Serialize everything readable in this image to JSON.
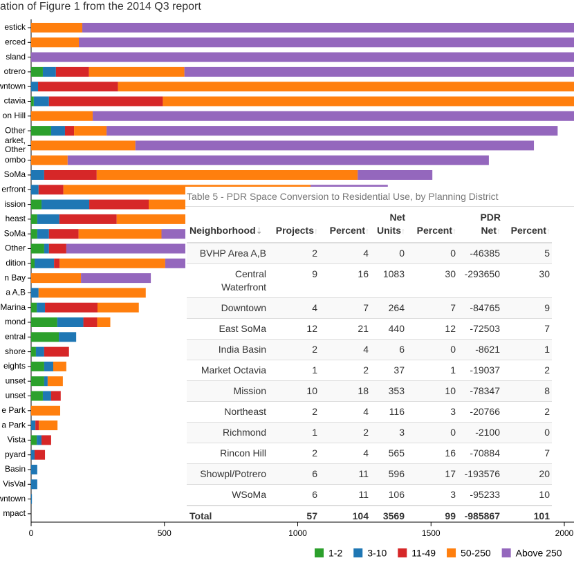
{
  "chart_data": {
    "type": "stacked-barh",
    "title": "ation of Figure 1 from the 2014 Q3 report",
    "categories": [
      "estick",
      "erced",
      "sland",
      "otrero",
      "wntown",
      "ctavia",
      "on Hill",
      "Other",
      "arket,\nOther",
      "ombo",
      "SoMa",
      "erfront",
      "ission",
      "heast",
      "SoMa",
      "Other",
      "dition",
      "n Bay",
      "a A,B",
      "Marina",
      "mond",
      "entral",
      "shore",
      "eights",
      "unset",
      "unset",
      "e Park",
      "a Park",
      "Vista",
      "pyard",
      "Basin",
      "VisVal",
      "owntown",
      "mpact"
    ],
    "series": [
      {
        "name": "1-2",
        "color": "#2ca02c",
        "values": [
          0,
          0,
          0,
          44,
          0,
          10,
          0,
          75,
          0,
          0,
          0,
          0,
          39,
          23,
          23,
          49,
          13,
          0,
          0,
          21,
          98,
          104,
          18,
          49,
          49,
          44,
          0,
          0,
          21,
          0,
          0,
          0,
          0,
          0
        ]
      },
      {
        "name": "3-10",
        "color": "#1f77b4",
        "values": [
          0,
          0,
          0,
          49,
          26,
          57,
          0,
          52,
          0,
          0,
          49,
          28,
          179,
          83,
          44,
          18,
          73,
          0,
          28,
          31,
          98,
          65,
          31,
          34,
          13,
          31,
          0,
          16,
          18,
          13,
          23,
          23,
          3,
          0
        ]
      },
      {
        "name": "11-49",
        "color": "#d62728",
        "values": [
          0,
          0,
          0,
          124,
          300,
          427,
          0,
          34,
          0,
          0,
          197,
          93,
          223,
          215,
          111,
          65,
          21,
          0,
          0,
          197,
          52,
          0,
          93,
          0,
          0,
          36,
          0,
          13,
          36,
          39,
          0,
          0,
          0,
          0
        ]
      },
      {
        "name": "50-250",
        "color": "#ff7f0e",
        "values": [
          192,
          179,
          0,
          358,
          1800,
          1600,
          231,
          122,
          391,
          137,
          979,
          927,
          400,
          400,
          311,
          0,
          396,
          187,
          402,
          155,
          49,
          0,
          0,
          49,
          57,
          0,
          109,
          70,
          0,
          0,
          0,
          0,
          0,
          0
        ]
      },
      {
        "name": "Above 250",
        "color": "#9467bd",
        "values": [
          1900,
          1900,
          2100,
          1500,
          0,
          0,
          1900,
          1692,
          1495,
          1580,
          280,
          290,
          300,
          0,
          100,
          500,
          100,
          262,
          0,
          0,
          0,
          0,
          0,
          0,
          0,
          0,
          0,
          0,
          0,
          0,
          0,
          0,
          0,
          0
        ]
      }
    ],
    "xlim": [
      0,
      2036
    ],
    "xticks": [
      0,
      500,
      1000,
      1500,
      2000
    ],
    "legend": "bottom-right"
  },
  "table": {
    "title": "Table 5 - PDR Space Conversion to Residential Use, by Planning District",
    "columns": [
      "Neighborhood",
      "Projects",
      "Percent",
      "Net Units",
      "Percent",
      "PDR Net",
      "Percent"
    ],
    "rows": [
      [
        "BVHP Area A,B",
        2,
        4,
        0,
        0,
        -46385,
        5
      ],
      [
        "Central Waterfront",
        9,
        16,
        1083,
        30,
        -293650,
        30
      ],
      [
        "Downtown",
        4,
        7,
        264,
        7,
        -84765,
        9
      ],
      [
        "East SoMa",
        12,
        21,
        440,
        12,
        -72503,
        7
      ],
      [
        "India Basin",
        2,
        4,
        6,
        0,
        -8621,
        1
      ],
      [
        "Market Octavia",
        1,
        2,
        37,
        1,
        -19037,
        2
      ],
      [
        "Mission",
        10,
        18,
        353,
        10,
        -78347,
        8
      ],
      [
        "Northeast",
        2,
        4,
        116,
        3,
        -20766,
        2
      ],
      [
        "Richmond",
        1,
        2,
        3,
        0,
        -2100,
        0
      ],
      [
        "Rincon Hill",
        2,
        4,
        565,
        16,
        -70884,
        7
      ],
      [
        "Showpl/Potrero",
        6,
        11,
        596,
        17,
        -193576,
        20
      ],
      [
        "WSoMa",
        6,
        11,
        106,
        3,
        -95233,
        10
      ]
    ],
    "total": [
      "Total",
      57,
      104,
      3569,
      99,
      -985867,
      101
    ]
  }
}
